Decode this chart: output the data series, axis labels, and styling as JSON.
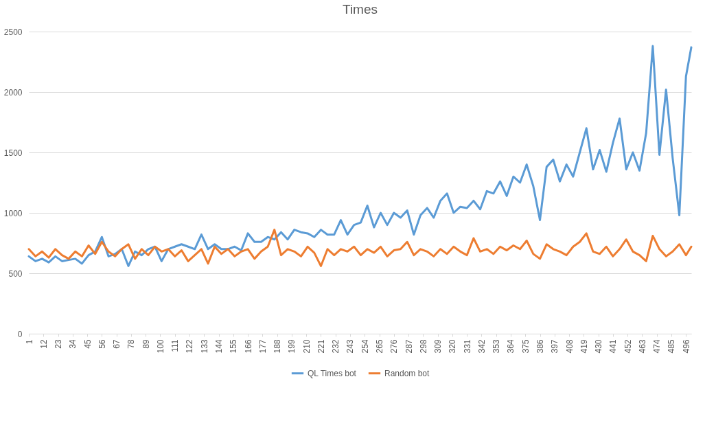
{
  "chart_data": {
    "type": "line",
    "title": "Times",
    "x": [
      1,
      6,
      11,
      16,
      21,
      26,
      31,
      36,
      41,
      46,
      51,
      56,
      61,
      66,
      71,
      76,
      81,
      86,
      91,
      96,
      101,
      106,
      111,
      116,
      121,
      126,
      131,
      136,
      141,
      146,
      151,
      156,
      161,
      166,
      171,
      176,
      181,
      186,
      191,
      196,
      201,
      206,
      211,
      216,
      221,
      226,
      231,
      236,
      241,
      246,
      251,
      256,
      261,
      266,
      271,
      276,
      281,
      286,
      291,
      296,
      301,
      306,
      311,
      316,
      321,
      326,
      331,
      336,
      341,
      346,
      351,
      356,
      361,
      366,
      371,
      376,
      381,
      386,
      391,
      396,
      401,
      406,
      411,
      416,
      421,
      426,
      431,
      436,
      441,
      446,
      451,
      456,
      461,
      466,
      471,
      476,
      481,
      486,
      491,
      496,
      500
    ],
    "series": [
      {
        "name": "QL Times bot",
        "color": "#5b9bd5",
        "values": [
          640,
          600,
          620,
          590,
          640,
          600,
          610,
          620,
          580,
          650,
          680,
          800,
          640,
          660,
          700,
          560,
          680,
          650,
          700,
          720,
          600,
          700,
          720,
          740,
          720,
          700,
          820,
          700,
          740,
          700,
          700,
          720,
          690,
          830,
          760,
          760,
          800,
          780,
          840,
          780,
          860,
          840,
          830,
          800,
          860,
          820,
          820,
          940,
          820,
          900,
          920,
          1060,
          880,
          1000,
          900,
          1000,
          960,
          1020,
          820,
          980,
          1040,
          960,
          1100,
          1160,
          1000,
          1050,
          1040,
          1100,
          1030,
          1180,
          1160,
          1260,
          1140,
          1300,
          1250,
          1400,
          1220,
          940,
          1380,
          1440,
          1260,
          1400,
          1300,
          1500,
          1700,
          1360,
          1520,
          1340,
          1580,
          1780,
          1360,
          1500,
          1350,
          1660,
          2380,
          1480,
          2020,
          1450,
          980,
          2130,
          2370
        ]
      },
      {
        "name": "Random bot",
        "color": "#ed7d31",
        "values": [
          700,
          640,
          680,
          630,
          700,
          650,
          620,
          680,
          640,
          730,
          660,
          760,
          680,
          640,
          700,
          740,
          620,
          700,
          650,
          720,
          680,
          700,
          640,
          690,
          600,
          650,
          700,
          580,
          720,
          660,
          700,
          640,
          680,
          700,
          620,
          680,
          720,
          860,
          650,
          700,
          680,
          640,
          720,
          670,
          560,
          700,
          650,
          700,
          680,
          720,
          650,
          700,
          670,
          720,
          640,
          690,
          700,
          760,
          650,
          700,
          680,
          640,
          700,
          660,
          720,
          680,
          650,
          790,
          680,
          700,
          660,
          720,
          690,
          730,
          700,
          770,
          660,
          620,
          740,
          700,
          680,
          650,
          720,
          760,
          830,
          680,
          660,
          720,
          640,
          700,
          780,
          680,
          650,
          600,
          810,
          700,
          640,
          680,
          740,
          650,
          720
        ]
      }
    ],
    "xlim": [
      1,
      500
    ],
    "xticks": [
      1,
      12,
      23,
      34,
      45,
      56,
      67,
      78,
      89,
      100,
      111,
      122,
      133,
      144,
      155,
      166,
      177,
      188,
      199,
      210,
      221,
      232,
      243,
      254,
      265,
      276,
      287,
      298,
      309,
      320,
      331,
      342,
      353,
      364,
      375,
      386,
      397,
      408,
      419,
      430,
      441,
      452,
      463,
      474,
      485,
      496
    ],
    "ylim": [
      0,
      2500
    ],
    "yticks": [
      0,
      500,
      1000,
      1500,
      2000,
      2500
    ],
    "grid": "y",
    "legend": "bottom",
    "marker": "none",
    "line_style": "solid"
  }
}
